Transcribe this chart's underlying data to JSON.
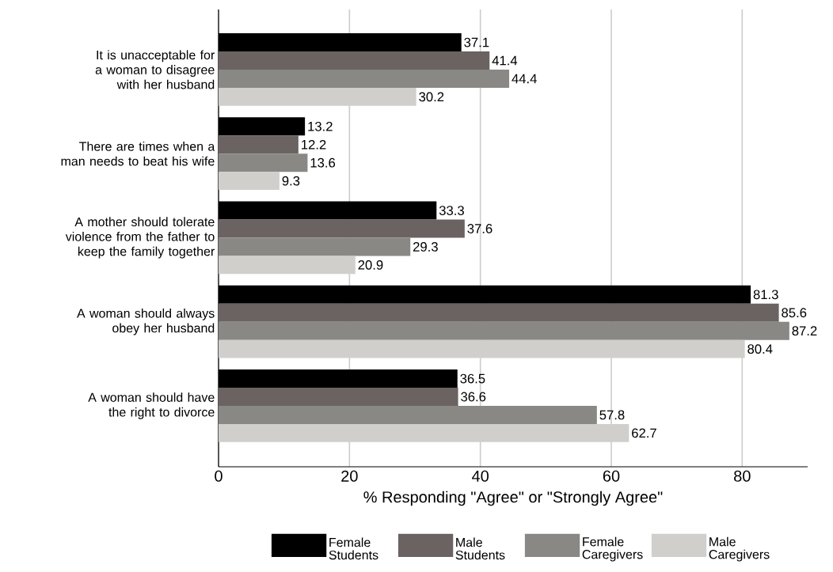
{
  "chart_data": {
    "type": "bar",
    "orientation": "horizontal",
    "categories": [
      "It is unacceptable for a woman to disagree with her husband",
      "There are times when a man needs to beat his wife",
      "A mother should tolerate violence from the father to keep the family together",
      "A woman should always obey her husband",
      "A woman should have the right to divorce"
    ],
    "series": [
      {
        "name": "Female Students",
        "color": "#000000",
        "values": [
          37.1,
          13.2,
          33.3,
          81.3,
          36.5
        ]
      },
      {
        "name": "Male Students",
        "color": "#6b6361",
        "values": [
          41.4,
          12.2,
          37.6,
          85.6,
          36.6
        ]
      },
      {
        "name": "Female Caregivers",
        "color": "#8a8884",
        "values": [
          44.4,
          13.6,
          29.3,
          87.2,
          57.8
        ]
      },
      {
        "name": "Male Caregivers",
        "color": "#d0cfcb",
        "values": [
          30.2,
          9.3,
          20.9,
          80.4,
          62.7
        ]
      }
    ],
    "xlabel": "% Responding \"Agree\" or \"Strongly Agree\"",
    "xlim": [
      0,
      90
    ],
    "xticks": [
      0,
      20,
      40,
      60,
      80
    ],
    "grid": "x",
    "legend": "bottom",
    "data_labels": true
  }
}
